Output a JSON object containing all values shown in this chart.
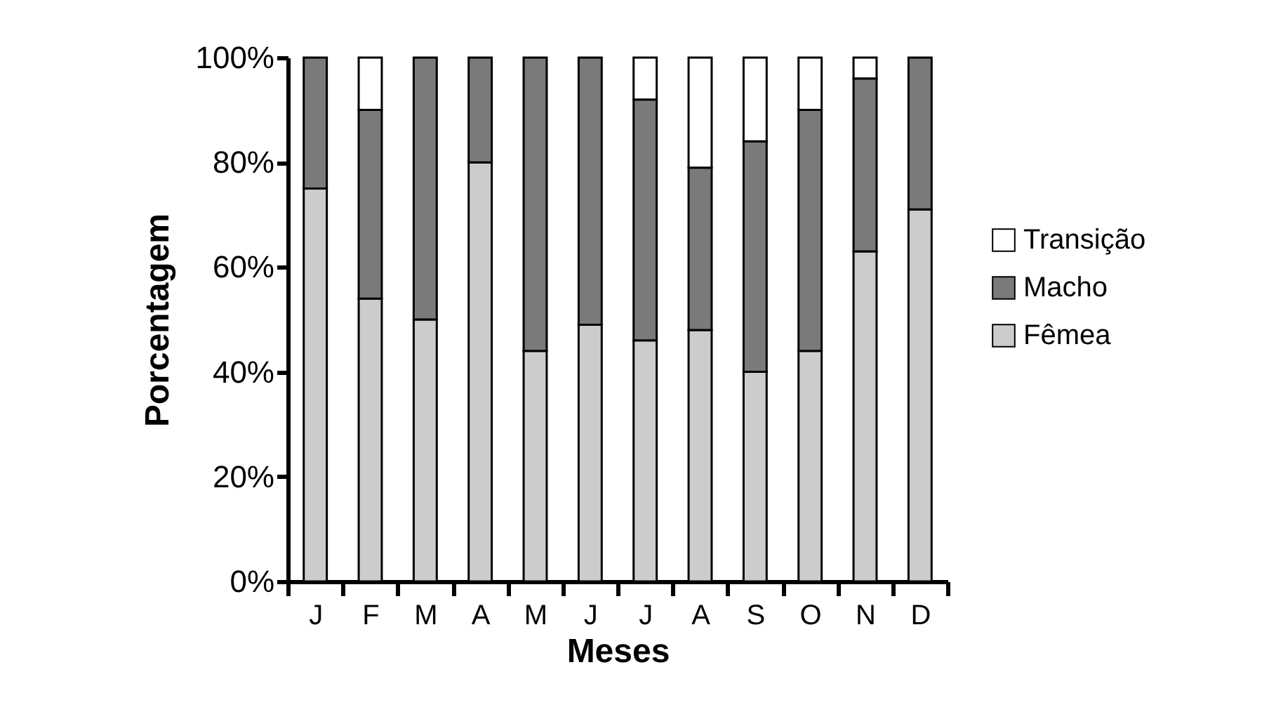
{
  "chart_data": {
    "type": "bar",
    "stacked": true,
    "xlabel": "Meses",
    "ylabel": "Porcentagem",
    "categories": [
      "J",
      "F",
      "M",
      "A",
      "M",
      "J",
      "J",
      "A",
      "S",
      "O",
      "N",
      "D"
    ],
    "series": [
      {
        "name": "Fêmea",
        "color": "#cccccc",
        "values": [
          75,
          54,
          50,
          80,
          44,
          49,
          46,
          48,
          40,
          44,
          63,
          71
        ]
      },
      {
        "name": "Macho",
        "color": "#7a7a7a",
        "values": [
          25,
          36,
          50,
          20,
          56,
          51,
          46,
          31,
          44,
          46,
          33,
          29
        ]
      },
      {
        "name": "Transição",
        "color": "#ffffff",
        "values": [
          0,
          10,
          0,
          0,
          0,
          0,
          8,
          21,
          16,
          10,
          4,
          0
        ]
      }
    ],
    "ylim": [
      0,
      100
    ],
    "yticks": [
      {
        "value": 0,
        "label": "0%"
      },
      {
        "value": 20,
        "label": "20%"
      },
      {
        "value": 40,
        "label": "40%"
      },
      {
        "value": 60,
        "label": "60%"
      },
      {
        "value": 80,
        "label": "80%"
      },
      {
        "value": 100,
        "label": "100%"
      }
    ],
    "legend": "right",
    "grid": false
  }
}
